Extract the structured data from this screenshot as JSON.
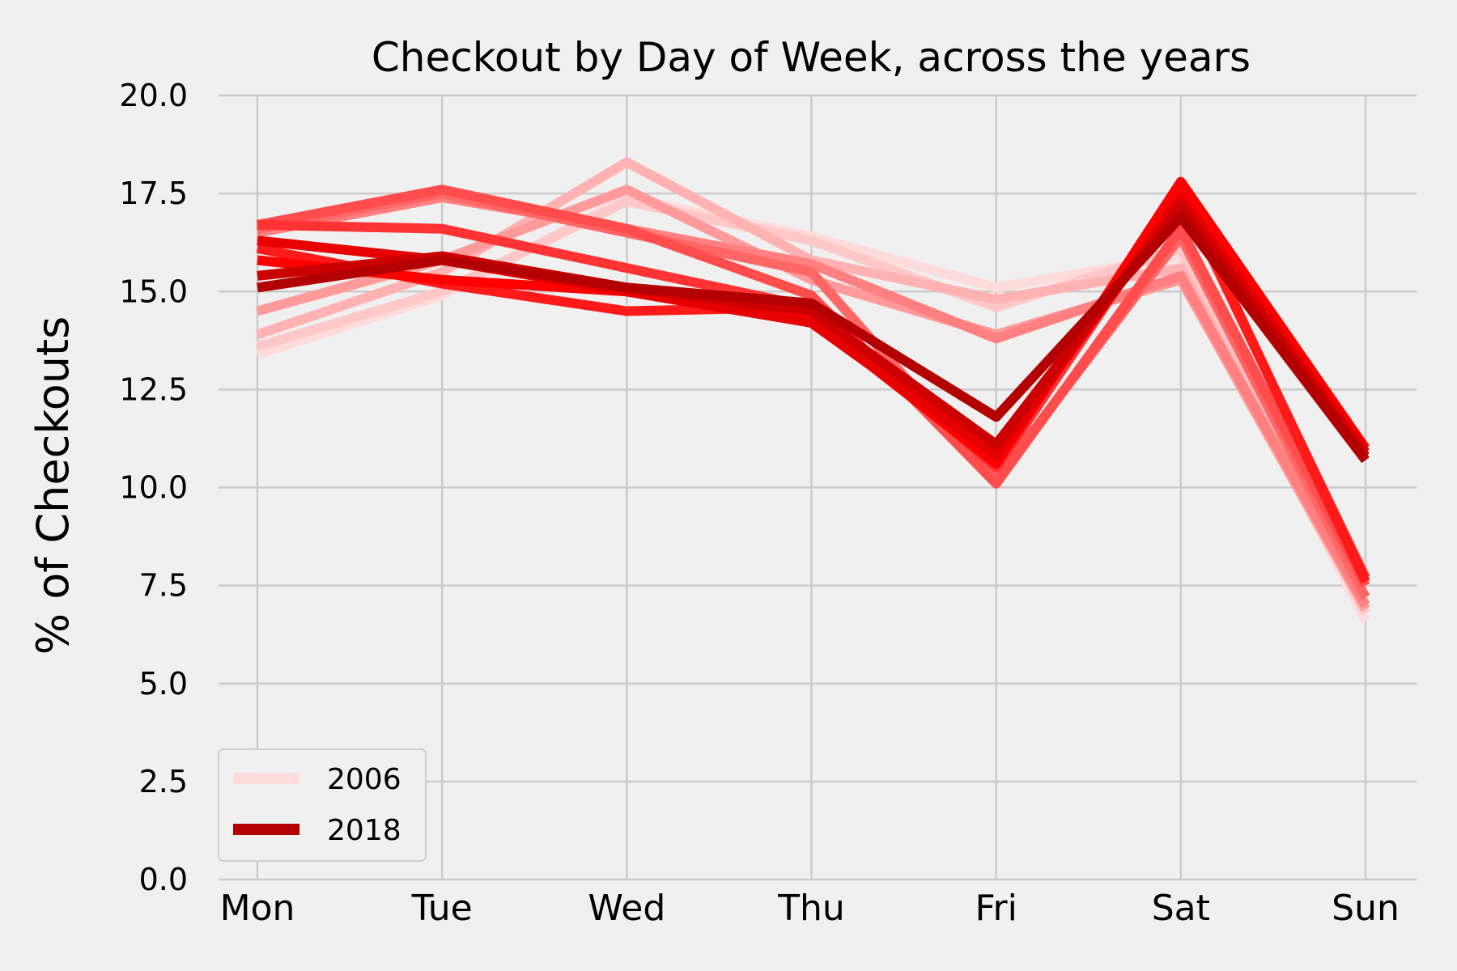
{
  "chart_data": {
    "type": "line",
    "title": "Checkout by Day of Week, across the years",
    "xlabel": "",
    "ylabel": "% of Checkouts",
    "categories": [
      "Mon",
      "Tue",
      "Wed",
      "Thu",
      "Fri",
      "Sat",
      "Sun"
    ],
    "ylim": [
      0,
      20
    ],
    "yticks": [
      0.0,
      2.5,
      5.0,
      7.5,
      10.0,
      12.5,
      15.0,
      17.5,
      20.0
    ],
    "grid": true,
    "legend_placement": "lower-left",
    "series": [
      {
        "name": "2006",
        "color": "#ffdcdc",
        "width": 12,
        "values": [
          13.4,
          14.9,
          17.4,
          16.4,
          15.1,
          15.9,
          6.6
        ]
      },
      {
        "name": "",
        "color": "#ffc8c8",
        "width": 12,
        "values": [
          13.6,
          15.0,
          17.3,
          16.3,
          14.6,
          16.1,
          6.8
        ]
      },
      {
        "name": "",
        "color": "#ffb2b2",
        "width": 12,
        "values": [
          13.9,
          15.5,
          18.3,
          15.8,
          14.8,
          15.6,
          6.9
        ]
      },
      {
        "name": "",
        "color": "#ff9a9a",
        "width": 12,
        "values": [
          14.5,
          15.8,
          17.6,
          15.3,
          13.9,
          15.3,
          6.9
        ]
      },
      {
        "name": "",
        "color": "#ff8080",
        "width": 12,
        "values": [
          16.5,
          17.4,
          16.6,
          15.7,
          13.8,
          15.4,
          7.0
        ]
      },
      {
        "name": "",
        "color": "#ff6666",
        "width": 12,
        "values": [
          16.6,
          17.5,
          16.5,
          15.5,
          10.2,
          16.4,
          7.2
        ]
      },
      {
        "name": "",
        "color": "#ff4d4d",
        "width": 12,
        "values": [
          16.7,
          17.6,
          16.6,
          14.9,
          10.1,
          16.6,
          7.5
        ]
      },
      {
        "name": "",
        "color": "#ff3333",
        "width": 12,
        "values": [
          16.7,
          16.6,
          15.6,
          14.6,
          10.5,
          17.5,
          7.7
        ]
      },
      {
        "name": "",
        "color": "#ff1a1a",
        "width": 12,
        "values": [
          16.1,
          15.2,
          14.5,
          14.6,
          10.7,
          17.6,
          7.6
        ]
      },
      {
        "name": "",
        "color": "#ff0000",
        "width": 12,
        "values": [
          15.8,
          15.3,
          15.0,
          14.3,
          10.6,
          17.8,
          11.0
        ]
      },
      {
        "name": "",
        "color": "#e60000",
        "width": 12,
        "values": [
          16.3,
          15.8,
          15.0,
          14.2,
          10.8,
          17.4,
          10.9
        ]
      },
      {
        "name": "",
        "color": "#cc0000",
        "width": 12,
        "values": [
          15.4,
          15.9,
          15.1,
          14.5,
          11.1,
          17.2,
          10.8
        ]
      },
      {
        "name": "2018",
        "color": "#b30000",
        "width": 12,
        "values": [
          15.1,
          15.8,
          15.1,
          14.7,
          11.8,
          16.9,
          10.7
        ]
      }
    ]
  }
}
